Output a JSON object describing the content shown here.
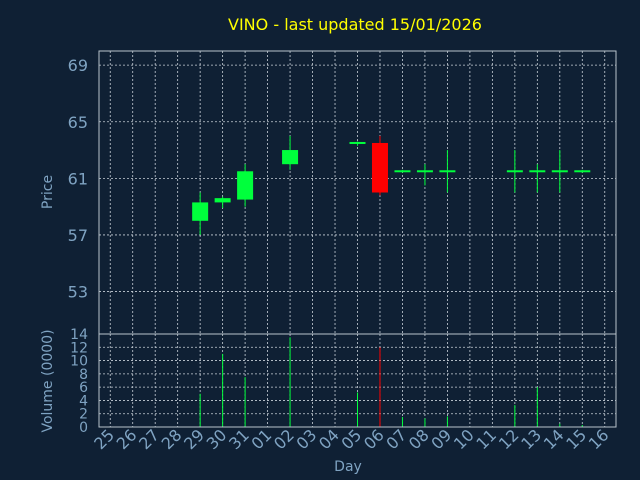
{
  "chart_data": {
    "type": "candlestick",
    "title": "VINO - last updated 15/01/2026",
    "xlabel": "Day",
    "ylabel": "Price",
    "volume_label": "Volume (0000)",
    "price_ticks": [
      "69",
      "65",
      "61",
      "57",
      "53"
    ],
    "price_ylim": [
      50,
      70
    ],
    "volume_ticks": [
      "14",
      "12",
      "10",
      "8",
      "6",
      "4",
      "2",
      "0"
    ],
    "volume_ylim": [
      0,
      14
    ],
    "grid": true,
    "colors": {
      "up": "#00ff3c",
      "down": "#ff0000",
      "background": "#0f2034",
      "title": "#ffff00",
      "axis_text": "#7fa3c2"
    },
    "categories": [
      "25",
      "26",
      "27",
      "28",
      "29",
      "30",
      "31",
      "01",
      "02",
      "03",
      "04",
      "05",
      "06",
      "07",
      "08",
      "09",
      "10",
      "11",
      "12",
      "13",
      "14",
      "15",
      "16"
    ],
    "candles": [
      {
        "day": "29",
        "open": 58.0,
        "high": 60.0,
        "low": 57.0,
        "close": 59.3
      },
      {
        "day": "30",
        "open": 59.3,
        "high": 59.7,
        "low": 58.9,
        "close": 59.6
      },
      {
        "day": "31",
        "open": 59.5,
        "high": 62.0,
        "low": 59.0,
        "close": 61.5
      },
      {
        "day": "02",
        "open": 62.0,
        "high": 64.0,
        "low": 61.6,
        "close": 63.0
      },
      {
        "day": "05",
        "open": 63.4,
        "high": 63.6,
        "low": 63.3,
        "close": 63.5
      },
      {
        "day": "06",
        "open": 63.5,
        "high": 64.0,
        "low": 59.8,
        "close": 60.0
      },
      {
        "day": "07",
        "open": 61.5,
        "high": 61.6,
        "low": 61.4,
        "close": 61.5
      },
      {
        "day": "08",
        "open": 61.5,
        "high": 62.0,
        "low": 60.5,
        "close": 61.5
      },
      {
        "day": "09",
        "open": 61.5,
        "high": 63.0,
        "low": 60.0,
        "close": 61.5
      },
      {
        "day": "12",
        "open": 61.5,
        "high": 63.0,
        "low": 60.0,
        "close": 61.5
      },
      {
        "day": "13",
        "open": 61.5,
        "high": 62.0,
        "low": 60.0,
        "close": 61.5
      },
      {
        "day": "14",
        "open": 61.5,
        "high": 63.0,
        "low": 60.0,
        "close": 61.5
      },
      {
        "day": "15",
        "open": 61.5,
        "high": 61.6,
        "low": 61.4,
        "close": 61.5
      }
    ],
    "volume": [
      {
        "day": "29",
        "value": 5.0,
        "dir": "up"
      },
      {
        "day": "30",
        "value": 11.0,
        "dir": "up"
      },
      {
        "day": "31",
        "value": 7.5,
        "dir": "up"
      },
      {
        "day": "02",
        "value": 13.5,
        "dir": "up"
      },
      {
        "day": "05",
        "value": 5.2,
        "dir": "up"
      },
      {
        "day": "06",
        "value": 12.0,
        "dir": "down"
      },
      {
        "day": "07",
        "value": 1.5,
        "dir": "up"
      },
      {
        "day": "08",
        "value": 1.3,
        "dir": "up"
      },
      {
        "day": "09",
        "value": 1.6,
        "dir": "up"
      },
      {
        "day": "12",
        "value": 3.3,
        "dir": "up"
      },
      {
        "day": "13",
        "value": 6.0,
        "dir": "up"
      },
      {
        "day": "14",
        "value": 0.5,
        "dir": "up"
      },
      {
        "day": "15",
        "value": 0.3,
        "dir": "up"
      }
    ]
  }
}
